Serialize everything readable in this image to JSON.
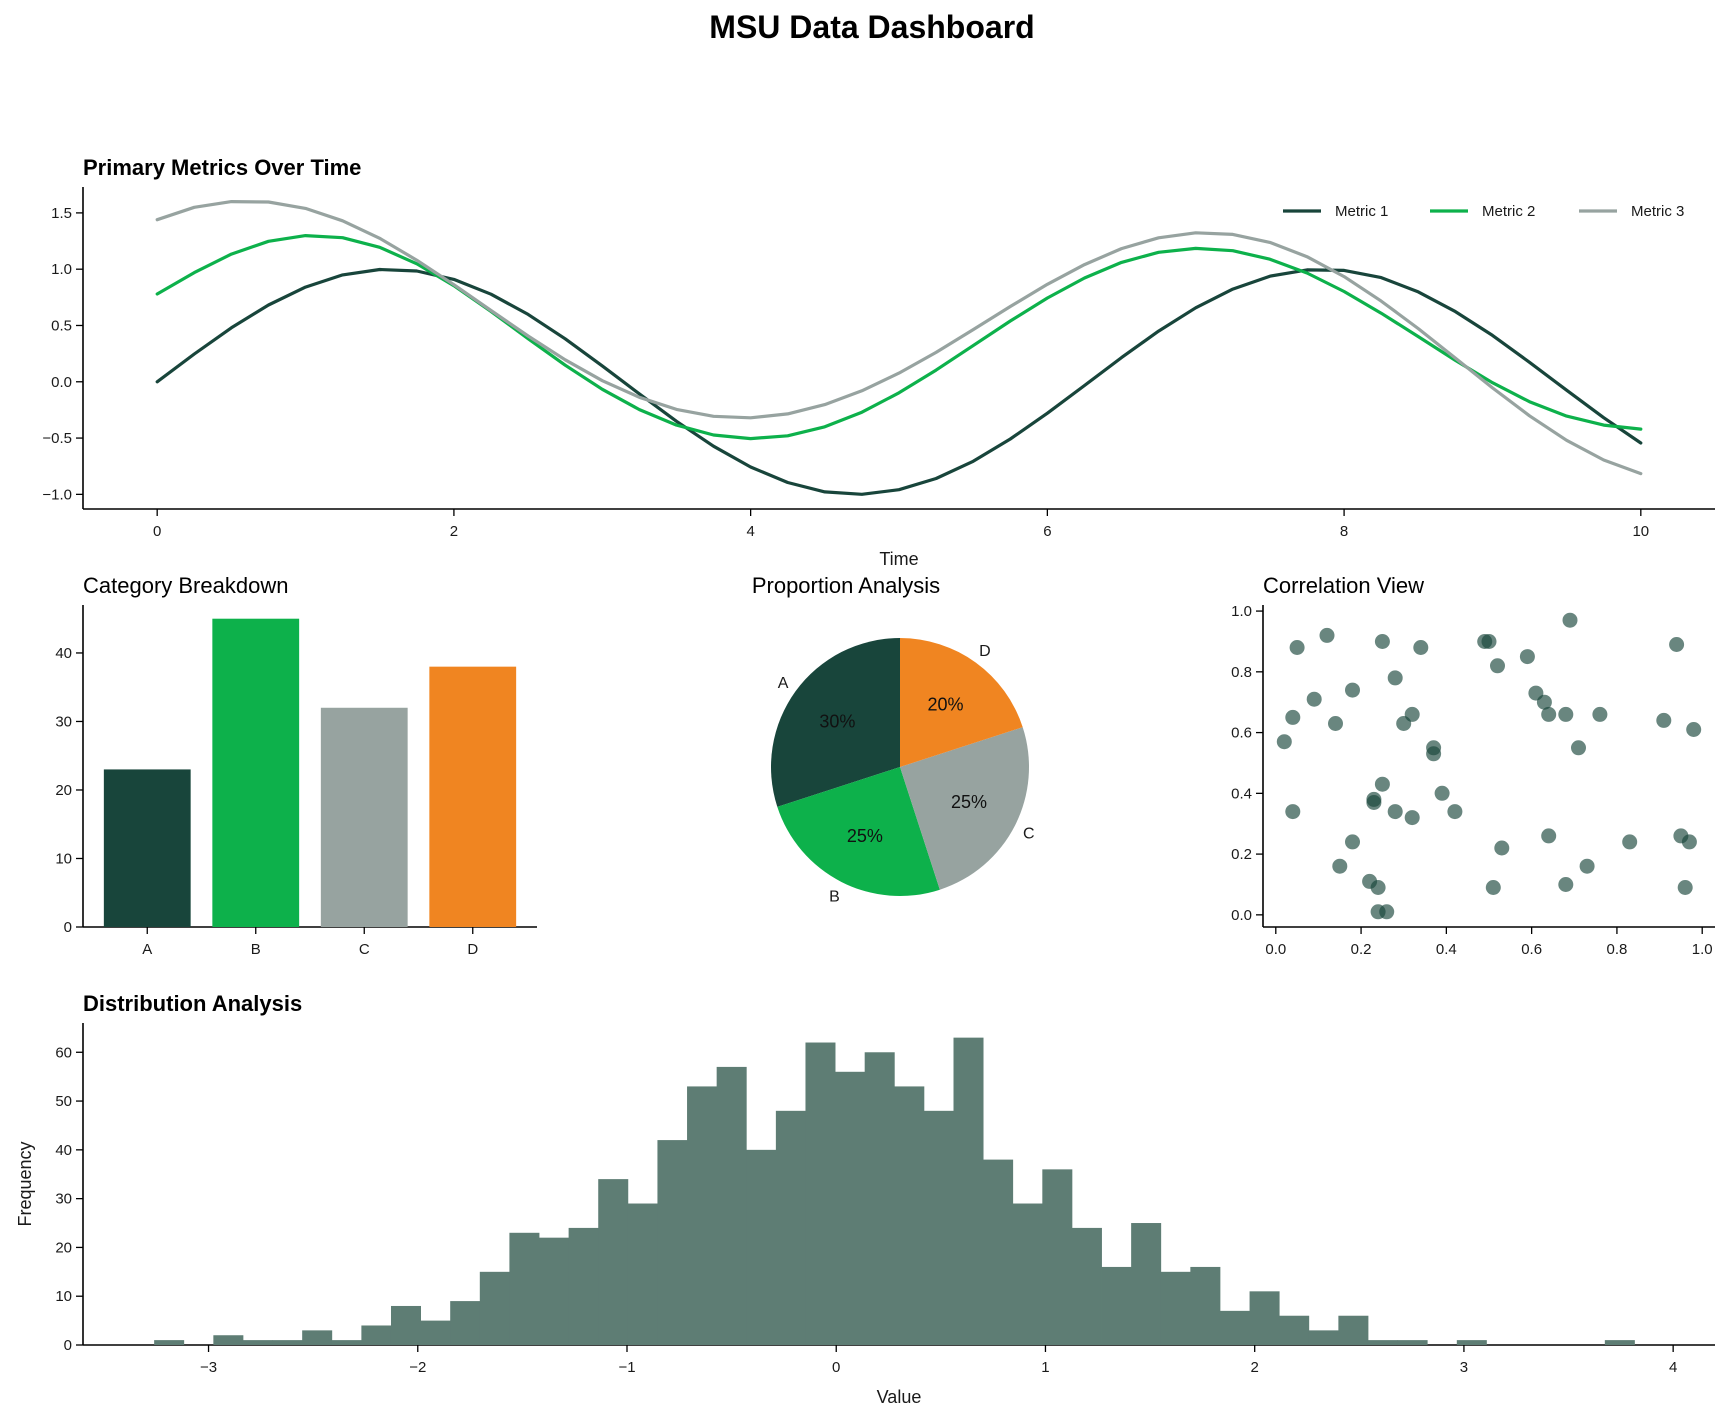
{
  "title": "MSU Data Dashboard",
  "colors": {
    "dark_green": "#18453B",
    "green": "#0DB14B",
    "gray": "#97A3A0",
    "orange": "#F08521",
    "hist": "#5E7D74"
  },
  "chart_data": [
    {
      "type": "line",
      "title": "Primary Metrics Over Time",
      "xlabel": "Time",
      "ylabel": "",
      "xlim": [
        -0.5,
        10.5
      ],
      "ylim": [
        -1.13,
        1.73
      ],
      "xticks": [
        "0",
        "2",
        "4",
        "6",
        "8",
        "10"
      ],
      "yticks": [
        "1.5",
        "1.0",
        "0.5",
        "0.0",
        "−0.5",
        "−1.0"
      ],
      "x": [
        0,
        0.25,
        0.5,
        0.75,
        1,
        1.25,
        1.5,
        1.75,
        2,
        2.25,
        2.5,
        2.75,
        3,
        3.25,
        3.5,
        3.75,
        4,
        4.25,
        4.5,
        4.75,
        5,
        5.25,
        5.5,
        5.75,
        6,
        6.25,
        6.5,
        6.75,
        7,
        7.25,
        7.5,
        7.75,
        8,
        8.25,
        8.5,
        8.75,
        9,
        9.25,
        9.5,
        9.75,
        10
      ],
      "legend_position": "top-right",
      "series": [
        {
          "name": "Metric 1",
          "color": "#18453B",
          "values": [
            0.0,
            0.247,
            0.479,
            0.682,
            0.841,
            0.949,
            0.997,
            0.984,
            0.909,
            0.778,
            0.598,
            0.382,
            0.141,
            -0.108,
            -0.351,
            -0.572,
            -0.757,
            -0.895,
            -0.978,
            -0.999,
            -0.959,
            -0.859,
            -0.706,
            -0.508,
            -0.279,
            -0.033,
            0.215,
            0.45,
            0.657,
            0.823,
            0.938,
            0.994,
            0.989,
            0.925,
            0.798,
            0.623,
            0.412,
            0.173,
            -0.075,
            -0.319,
            -0.544
          ]
        },
        {
          "name": "Metric 2",
          "color": "#0DB14B",
          "values": [
            0.78,
            0.97,
            1.134,
            1.248,
            1.298,
            1.28,
            1.194,
            1.048,
            0.853,
            0.625,
            0.383,
            0.147,
            -0.067,
            -0.247,
            -0.385,
            -0.473,
            -0.505,
            -0.48,
            -0.4,
            -0.27,
            -0.098,
            0.104,
            0.321,
            0.54,
            0.744,
            0.922,
            1.06,
            1.15,
            1.185,
            1.164,
            1.089,
            0.966,
            0.802,
            0.609,
            0.401,
            0.19,
            -0.008,
            -0.177,
            -0.305,
            -0.385,
            -0.42
          ]
        },
        {
          "name": "Metric 3",
          "color": "#97A3A0",
          "values": [
            1.44,
            1.55,
            1.6,
            1.597,
            1.54,
            1.43,
            1.274,
            1.08,
            0.862,
            0.633,
            0.407,
            0.195,
            0.01,
            -0.138,
            -0.245,
            -0.307,
            -0.32,
            -0.285,
            -0.203,
            -0.08,
            0.077,
            0.261,
            0.463,
            0.669,
            0.866,
            1.041,
            1.183,
            1.279,
            1.323,
            1.309,
            1.238,
            1.111,
            0.934,
            0.717,
            0.472,
            0.21,
            -0.054,
            -0.302,
            -0.52,
            -0.695,
            -0.816
          ]
        }
      ]
    },
    {
      "type": "bar",
      "title": "Category Breakdown",
      "categories": [
        "A",
        "B",
        "C",
        "D"
      ],
      "values": [
        23,
        45,
        32,
        38
      ],
      "colors": [
        "#18453B",
        "#0DB14B",
        "#97A3A0",
        "#F08521"
      ],
      "ylim": [
        0,
        47
      ],
      "yticks": [
        "40",
        "30",
        "20",
        "10",
        "0"
      ],
      "xlabel": "",
      "ylabel": ""
    },
    {
      "type": "pie",
      "title": "Proportion Analysis",
      "labels": [
        "A",
        "B",
        "C",
        "D"
      ],
      "values": [
        30,
        25,
        25,
        20
      ],
      "pct_labels": [
        "30%",
        "25%",
        "25%",
        "20%"
      ],
      "colors": [
        "#18453B",
        "#0DB14B",
        "#97A3A0",
        "#F08521"
      ]
    },
    {
      "type": "scatter",
      "title": "Correlation View",
      "xlim": [
        -0.03,
        1.03
      ],
      "ylim": [
        -0.04,
        1.02
      ],
      "xticks": [
        "0.0",
        "0.2",
        "0.4",
        "0.6",
        "0.8",
        "1.0"
      ],
      "yticks": [
        "1.0",
        "0.8",
        "0.6",
        "0.4",
        "0.2",
        "0.0"
      ],
      "x": [
        0.02,
        0.04,
        0.05,
        0.09,
        0.12,
        0.14,
        0.18,
        0.04,
        0.15,
        0.18,
        0.22,
        0.23,
        0.24,
        0.24,
        0.25,
        0.26,
        0.28,
        0.3,
        0.32,
        0.34,
        0.28,
        0.32,
        0.37,
        0.37,
        0.39,
        0.42,
        0.49,
        0.5,
        0.51,
        0.52,
        0.53,
        0.59,
        0.61,
        0.63,
        0.64,
        0.68,
        0.69,
        0.71,
        0.76,
        0.64,
        0.68,
        0.73,
        0.83,
        0.91,
        0.94,
        0.95,
        0.97,
        0.98,
        0.96,
        0.23,
        0.25
      ],
      "y": [
        0.57,
        0.65,
        0.88,
        0.71,
        0.92,
        0.63,
        0.74,
        0.34,
        0.16,
        0.24,
        0.11,
        0.37,
        0.01,
        0.09,
        0.9,
        0.01,
        0.78,
        0.63,
        0.66,
        0.88,
        0.34,
        0.32,
        0.53,
        0.55,
        0.4,
        0.34,
        0.9,
        0.9,
        0.09,
        0.82,
        0.22,
        0.85,
        0.73,
        0.7,
        0.66,
        0.66,
        0.97,
        0.55,
        0.66,
        0.26,
        0.1,
        0.16,
        0.24,
        0.64,
        0.89,
        0.26,
        0.24,
        0.61,
        0.09,
        0.38,
        0.43
      ]
    },
    {
      "type": "bar",
      "subtype": "histogram",
      "title": "Distribution Analysis",
      "xlabel": "Value",
      "ylabel": "Frequency",
      "bin_start": -3.26,
      "bin_width": 0.1415,
      "counts": [
        1,
        0,
        2,
        1,
        1,
        3,
        1,
        4,
        8,
        5,
        9,
        15,
        23,
        22,
        24,
        34,
        29,
        42,
        53,
        57,
        40,
        48,
        62,
        56,
        60,
        53,
        48,
        63,
        38,
        29,
        36,
        24,
        16,
        25,
        15,
        16,
        7,
        11,
        6,
        3,
        6,
        1,
        1,
        0,
        1,
        0,
        0,
        0,
        0,
        1
      ],
      "xlim": [
        -3.6,
        4.2
      ],
      "ylim": [
        0,
        66
      ],
      "xticks": [
        "−3",
        "−2",
        "−1",
        "0",
        "1",
        "2",
        "3",
        "4"
      ],
      "yticks": [
        "60",
        "50",
        "40",
        "30",
        "20",
        "10",
        "0"
      ]
    }
  ]
}
